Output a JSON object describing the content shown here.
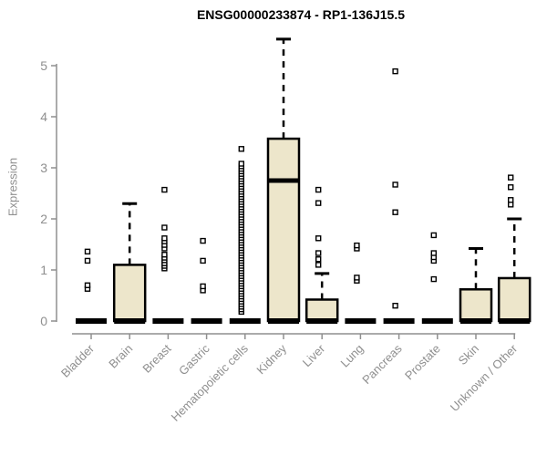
{
  "chart_data": {
    "type": "boxplot",
    "title": "ENSG00000233874 - RP1-136J15.5",
    "ylabel": "Expression",
    "ylim": [
      0,
      5.6
    ],
    "yticks": [
      0,
      1,
      2,
      3,
      4,
      5
    ],
    "grid": false,
    "boxes": [
      {
        "category": "Bladder",
        "low": 0,
        "q1": 0,
        "median": 0,
        "q3": 0,
        "high": 0,
        "outliers": [
          0.63,
          0.7,
          1.18,
          1.36
        ]
      },
      {
        "category": "Brain",
        "low": 0,
        "q1": 0,
        "median": 0.02,
        "q3": 1.1,
        "high": 2.3,
        "outliers": []
      },
      {
        "category": "Breast",
        "low": 0,
        "q1": 0,
        "median": 0,
        "q3": 0,
        "high": 0,
        "outliers": [
          1.03,
          1.08,
          1.13,
          1.19,
          1.24,
          1.3,
          1.42,
          1.49,
          1.56,
          1.62,
          1.83,
          2.57
        ]
      },
      {
        "category": "Gastric",
        "low": 0,
        "q1": 0,
        "median": 0,
        "q3": 0,
        "high": 0,
        "outliers": [
          0.6,
          0.68,
          1.18,
          1.57
        ]
      },
      {
        "category": "Hematopoietic cells",
        "low": 0,
        "q1": 0,
        "median": 0,
        "q3": 0,
        "high": 0,
        "outliers": [
          0.18,
          0.23,
          0.28,
          0.33,
          0.38,
          0.43,
          0.48,
          0.53,
          0.58,
          0.63,
          0.68,
          0.73,
          0.78,
          0.83,
          0.88,
          0.93,
          0.98,
          1.03,
          1.08,
          1.13,
          1.18,
          1.23,
          1.28,
          1.33,
          1.38,
          1.43,
          1.48,
          1.53,
          1.58,
          1.63,
          1.68,
          1.73,
          1.78,
          1.83,
          1.88,
          1.93,
          1.98,
          2.03,
          2.08,
          2.13,
          2.18,
          2.23,
          2.28,
          2.33,
          2.38,
          2.43,
          2.48,
          2.53,
          2.58,
          2.63,
          2.68,
          2.73,
          2.78,
          2.83,
          2.88,
          2.93,
          2.98,
          3.03,
          3.08,
          3.37
        ]
      },
      {
        "category": "Kidney",
        "low": 0,
        "q1": 0,
        "median": 2.75,
        "q3": 3.57,
        "high": 5.52,
        "outliers": []
      },
      {
        "category": "Liver",
        "low": 0,
        "q1": 0,
        "median": 0.02,
        "q3": 0.42,
        "high": 0.93,
        "outliers": [
          1.1,
          1.21,
          1.33,
          1.62,
          2.31,
          2.57
        ]
      },
      {
        "category": "Lung",
        "low": 0,
        "q1": 0,
        "median": 0,
        "q3": 0,
        "high": 0,
        "outliers": [
          0.79,
          0.85,
          1.42,
          1.48
        ]
      },
      {
        "category": "Pancreas",
        "low": 0,
        "q1": 0,
        "median": 0,
        "q3": 0,
        "high": 0,
        "outliers": [
          0.3,
          2.13,
          2.67,
          4.89
        ]
      },
      {
        "category": "Prostate",
        "low": 0,
        "q1": 0,
        "median": 0,
        "q3": 0,
        "high": 0,
        "outliers": [
          0.82,
          1.18,
          1.25,
          1.33,
          1.68
        ]
      },
      {
        "category": "Skin",
        "low": 0,
        "q1": 0,
        "median": 0.02,
        "q3": 0.62,
        "high": 1.42,
        "outliers": []
      },
      {
        "category": "Unknown / Other",
        "low": 0,
        "q1": 0,
        "median": 0.03,
        "q3": 0.84,
        "high": 2.0,
        "outliers": [
          2.28,
          2.37,
          2.62,
          2.81
        ]
      }
    ]
  },
  "colors": {
    "box_fill": "#EDE6CB",
    "box_stroke": "#000000",
    "median": "#000000",
    "outlier_stroke": "#000000",
    "outlier_fill": "#FFFFFF",
    "axis": "#8F8F8F",
    "tick_label": "#8F8F8F",
    "title": "#000000",
    "background": "#FFFFFF"
  }
}
